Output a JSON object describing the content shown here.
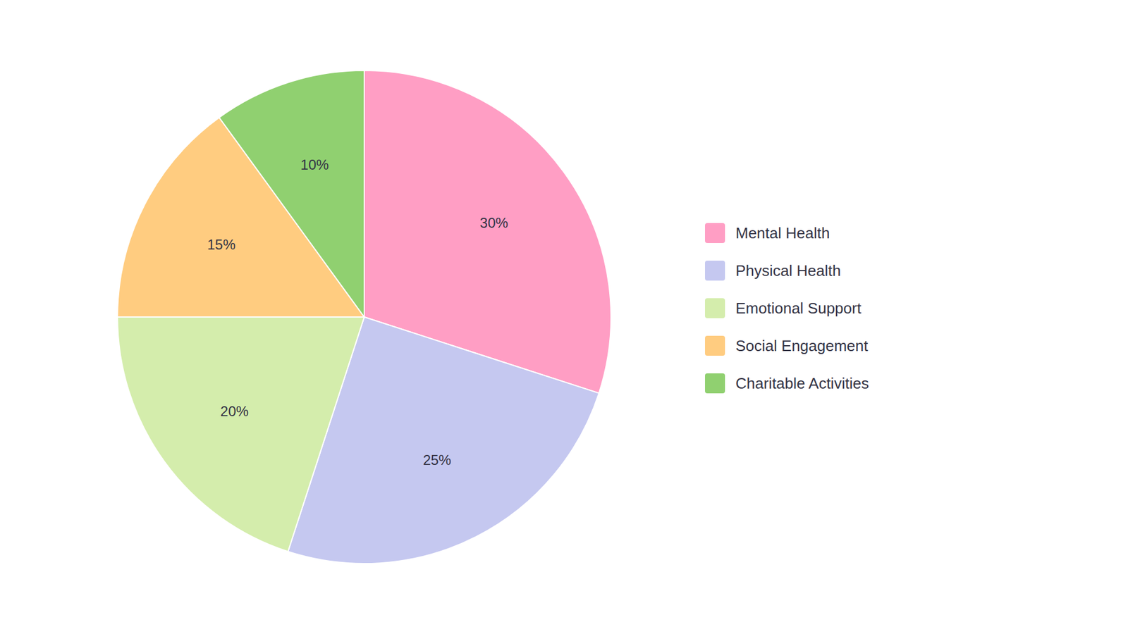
{
  "chart_data": {
    "type": "pie",
    "categories": [
      "Mental Health",
      "Physical Health",
      "Emotional Support",
      "Social Engagement",
      "Charitable Activities"
    ],
    "values": [
      30,
      25,
      20,
      15,
      10
    ],
    "value_labels": [
      "30%",
      "25%",
      "20%",
      "15%",
      "10%"
    ],
    "colors": [
      "#FF9EC4",
      "#C5C8F0",
      "#D4EDAC",
      "#FFCC80",
      "#90D070"
    ],
    "data_labels": true,
    "legend": "right"
  }
}
